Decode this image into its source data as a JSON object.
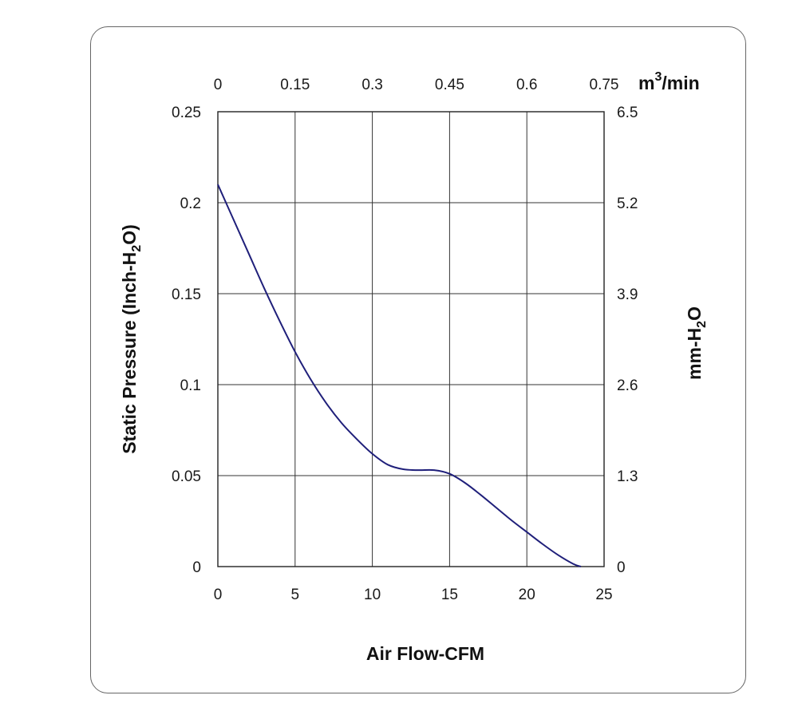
{
  "chart_data": {
    "type": "line",
    "xlabel": "Air Flow-CFM",
    "ylabel": {
      "pre": "Static Pressure (Inch-H",
      "sub": "2",
      "post": "O)"
    },
    "x2label": {
      "pre": "m",
      "sup": "3",
      "post": "/min"
    },
    "y2label": {
      "pre": "mm-H",
      "sub": "2",
      "post": "O"
    },
    "xlim": [
      0,
      25
    ],
    "ylim": [
      0,
      0.25
    ],
    "x_ticks": [
      "0",
      "5",
      "10",
      "15",
      "20",
      "25"
    ],
    "y_ticks": [
      "0",
      "0.05",
      "0.1",
      "0.15",
      "0.2",
      "0.25"
    ],
    "x2_ticks": [
      "0",
      "0.15",
      "0.3",
      "0.45",
      "0.6",
      "0.75"
    ],
    "y2_ticks": [
      "0",
      "1.3",
      "2.6",
      "3.9",
      "5.2",
      "6.5"
    ],
    "grid": true,
    "line_color": "#1f1f7a",
    "series": [
      {
        "x": [
          0,
          1,
          2,
          3,
          4,
          5,
          6,
          7,
          8,
          9,
          10,
          11,
          12,
          13,
          14,
          15,
          16,
          17,
          18,
          19,
          20,
          21,
          22,
          23,
          23.5
        ],
        "values": [
          0.21,
          0.191,
          0.172,
          0.153,
          0.135,
          0.118,
          0.103,
          0.09,
          0.079,
          0.07,
          0.062,
          0.056,
          0.0535,
          0.053,
          0.053,
          0.051,
          0.046,
          0.0395,
          0.0325,
          0.0255,
          0.019,
          0.0125,
          0.0065,
          0.0015,
          0
        ]
      }
    ]
  }
}
